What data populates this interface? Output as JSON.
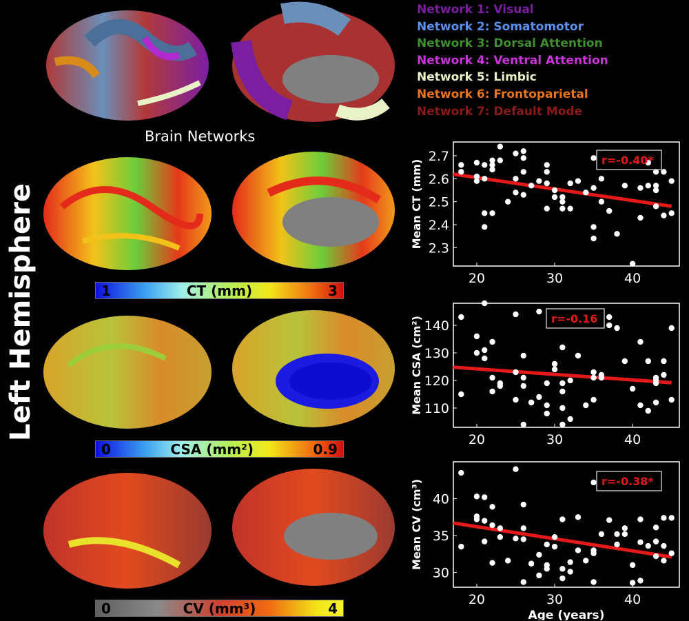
{
  "side_title": "Left Hemisphere",
  "networks_title": "Brain Networks",
  "legend": [
    {
      "label": "Network 1: Visual",
      "color": "#7b1fa2"
    },
    {
      "label": "Network 2: Somatomotor",
      "color": "#5b8ff0"
    },
    {
      "label": "Network 3: Dorsal Attention",
      "color": "#3f8f2f"
    },
    {
      "label": "Network 4: Ventral Attention",
      "color": "#cc33dd"
    },
    {
      "label": "Network 5: Limbic",
      "color": "#e9f2c7"
    },
    {
      "label": "Network 6: Frontoparietal",
      "color": "#e8741e"
    },
    {
      "label": "Network 7: Default Mode",
      "color": "#8b1a1a"
    }
  ],
  "colorbars": [
    {
      "min": "0",
      "label": "CT (mm)",
      "max": "3",
      "min_shown": "1"
    },
    {
      "min": "0",
      "label": "CSA (mm²)",
      "max": "0.9"
    },
    {
      "min": "0",
      "label": "CV (mm³)",
      "max": "4"
    }
  ],
  "chart_data": [
    {
      "type": "scatter",
      "ylabel": "Mean CT (mm)",
      "xlabel": "",
      "xlim": [
        17,
        46
      ],
      "ylim": [
        2.22,
        2.76
      ],
      "yticks": [
        2.3,
        2.4,
        2.5,
        2.6,
        2.7
      ],
      "xticks": [
        20,
        30,
        40
      ],
      "annotation": "r=-0.40*",
      "fit": [
        [
          17,
          2.62
        ],
        [
          45,
          2.48
        ]
      ],
      "points": [
        [
          18,
          2.66
        ],
        [
          18,
          2.63
        ],
        [
          20,
          2.67
        ],
        [
          20,
          2.61
        ],
        [
          20,
          2.59
        ],
        [
          21,
          2.6
        ],
        [
          21,
          2.66
        ],
        [
          21,
          2.39
        ],
        [
          21,
          2.45
        ],
        [
          22,
          2.64
        ],
        [
          22,
          2.45
        ],
        [
          22,
          2.66
        ],
        [
          22,
          2.68
        ],
        [
          23,
          2.74
        ],
        [
          23,
          2.68
        ],
        [
          24,
          2.5
        ],
        [
          25,
          2.54
        ],
        [
          25,
          2.71
        ],
        [
          25,
          2.6
        ],
        [
          26,
          2.72
        ],
        [
          26,
          2.53
        ],
        [
          26,
          2.63
        ],
        [
          26,
          2.69
        ],
        [
          27,
          2.57
        ],
        [
          28,
          2.59
        ],
        [
          29,
          2.66
        ],
        [
          29,
          2.47
        ],
        [
          29,
          2.63
        ],
        [
          29,
          2.58
        ],
        [
          30,
          2.52
        ],
        [
          30,
          2.55
        ],
        [
          31,
          2.5
        ],
        [
          31,
          2.47
        ],
        [
          31,
          2.52
        ],
        [
          32,
          2.58
        ],
        [
          32,
          2.47
        ],
        [
          33,
          2.59
        ],
        [
          34,
          2.54
        ],
        [
          35,
          2.69
        ],
        [
          35,
          2.56
        ],
        [
          35,
          2.39
        ],
        [
          35,
          2.34
        ],
        [
          36,
          2.5
        ],
        [
          36,
          2.6
        ],
        [
          37,
          2.46
        ],
        [
          38,
          2.36
        ],
        [
          39,
          2.57
        ],
        [
          40,
          2.23
        ],
        [
          41,
          2.43
        ],
        [
          41,
          2.56
        ],
        [
          42,
          2.57
        ],
        [
          42,
          2.67
        ],
        [
          43,
          2.63
        ],
        [
          43,
          2.55
        ],
        [
          43,
          2.57
        ],
        [
          43,
          2.48
        ],
        [
          44,
          2.63
        ],
        [
          44,
          2.44
        ],
        [
          45,
          2.45
        ],
        [
          45,
          2.59
        ]
      ]
    },
    {
      "type": "scatter",
      "ylabel": "Mean CSA (cm²)",
      "xlabel": "",
      "xlim": [
        17,
        46
      ],
      "ylim": [
        103,
        148
      ],
      "yticks": [
        110,
        120,
        130,
        140
      ],
      "xticks": [
        20,
        30,
        40
      ],
      "annotation": "r=-0.16",
      "fit": [
        [
          17,
          124.8
        ],
        [
          45,
          119.2
        ]
      ],
      "points": [
        [
          18,
          143
        ],
        [
          18,
          115
        ],
        [
          20,
          136
        ],
        [
          20,
          130
        ],
        [
          21,
          131
        ],
        [
          21,
          148
        ],
        [
          21,
          128
        ],
        [
          22,
          134
        ],
        [
          22,
          121
        ],
        [
          22,
          116
        ],
        [
          23,
          119
        ],
        [
          23,
          118
        ],
        [
          25,
          144
        ],
        [
          25,
          123
        ],
        [
          25,
          113
        ],
        [
          26,
          129
        ],
        [
          26,
          121
        ],
        [
          26,
          118
        ],
        [
          26,
          104
        ],
        [
          27,
          112
        ],
        [
          27,
          112
        ],
        [
          28,
          145
        ],
        [
          28,
          114
        ],
        [
          29,
          111
        ],
        [
          29,
          108
        ],
        [
          29,
          119
        ],
        [
          30,
          126
        ],
        [
          30,
          124
        ],
        [
          31,
          119
        ],
        [
          31,
          116
        ],
        [
          31,
          132
        ],
        [
          31,
          110
        ],
        [
          31,
          104
        ],
        [
          32,
          120
        ],
        [
          32,
          106
        ],
        [
          33,
          129
        ],
        [
          34,
          111
        ],
        [
          35,
          123
        ],
        [
          35,
          121
        ],
        [
          35,
          113
        ],
        [
          36,
          122
        ],
        [
          36,
          121
        ],
        [
          37,
          143
        ],
        [
          37,
          140
        ],
        [
          38,
          139
        ],
        [
          39,
          127
        ],
        [
          40,
          117
        ],
        [
          41,
          134
        ],
        [
          41,
          111
        ],
        [
          42,
          127
        ],
        [
          42,
          109
        ],
        [
          43,
          121
        ],
        [
          43,
          119
        ],
        [
          43,
          120
        ],
        [
          43,
          112
        ],
        [
          44,
          127
        ],
        [
          44,
          122
        ],
        [
          45,
          113
        ],
        [
          45,
          139
        ]
      ]
    },
    {
      "type": "scatter",
      "ylabel": "Mean CV (cm³)",
      "xlabel": "Age (years)",
      "xlim": [
        17,
        46
      ],
      "ylim": [
        28,
        45
      ],
      "yticks": [
        30,
        35,
        40
      ],
      "xticks": [
        20,
        30,
        40
      ],
      "annotation": "r=-0.38*",
      "fit": [
        [
          17,
          36.7
        ],
        [
          45,
          32.1
        ]
      ],
      "points": [
        [
          18,
          43.5
        ],
        [
          18,
          33.5
        ],
        [
          20,
          40.3
        ],
        [
          20,
          37.6
        ],
        [
          20,
          37.2
        ],
        [
          21,
          40.2
        ],
        [
          21,
          37.0
        ],
        [
          21,
          34.2
        ],
        [
          22,
          36.4
        ],
        [
          22,
          38.9
        ],
        [
          22,
          31.3
        ],
        [
          23,
          36.0
        ],
        [
          23,
          34.8
        ],
        [
          24,
          31.6
        ],
        [
          25,
          44.0
        ],
        [
          25,
          34.6
        ],
        [
          26,
          39.2
        ],
        [
          26,
          36.0
        ],
        [
          26,
          34.5
        ],
        [
          26,
          28.7
        ],
        [
          27,
          31.2
        ],
        [
          28,
          32.4
        ],
        [
          28,
          29.6
        ],
        [
          29,
          33.8
        ],
        [
          29,
          31.0
        ],
        [
          29,
          30.5
        ],
        [
          30,
          34.8
        ],
        [
          30,
          33.5
        ],
        [
          31,
          37.2
        ],
        [
          31,
          30.5
        ],
        [
          31,
          29.2
        ],
        [
          32,
          31.4
        ],
        [
          32,
          30.1
        ],
        [
          33,
          37.5
        ],
        [
          33,
          33.0
        ],
        [
          34,
          31.6
        ],
        [
          35,
          33.0
        ],
        [
          35,
          32.6
        ],
        [
          35,
          28.7
        ],
        [
          35,
          42.2
        ],
        [
          36,
          35.2
        ],
        [
          37,
          37.1
        ],
        [
          38,
          35.2
        ],
        [
          38,
          33.8
        ],
        [
          39,
          36.0
        ],
        [
          39,
          35.2
        ],
        [
          40,
          31.0
        ],
        [
          40,
          28.6
        ],
        [
          41,
          37.2
        ],
        [
          41,
          34.1
        ],
        [
          41,
          28.9
        ],
        [
          42,
          33.6
        ],
        [
          43,
          36.1
        ],
        [
          43,
          34.2
        ],
        [
          43,
          32.2
        ],
        [
          44,
          33.6
        ],
        [
          44,
          31.6
        ],
        [
          44,
          37.4
        ],
        [
          45,
          32.6
        ],
        [
          45,
          37.4
        ]
      ]
    }
  ]
}
